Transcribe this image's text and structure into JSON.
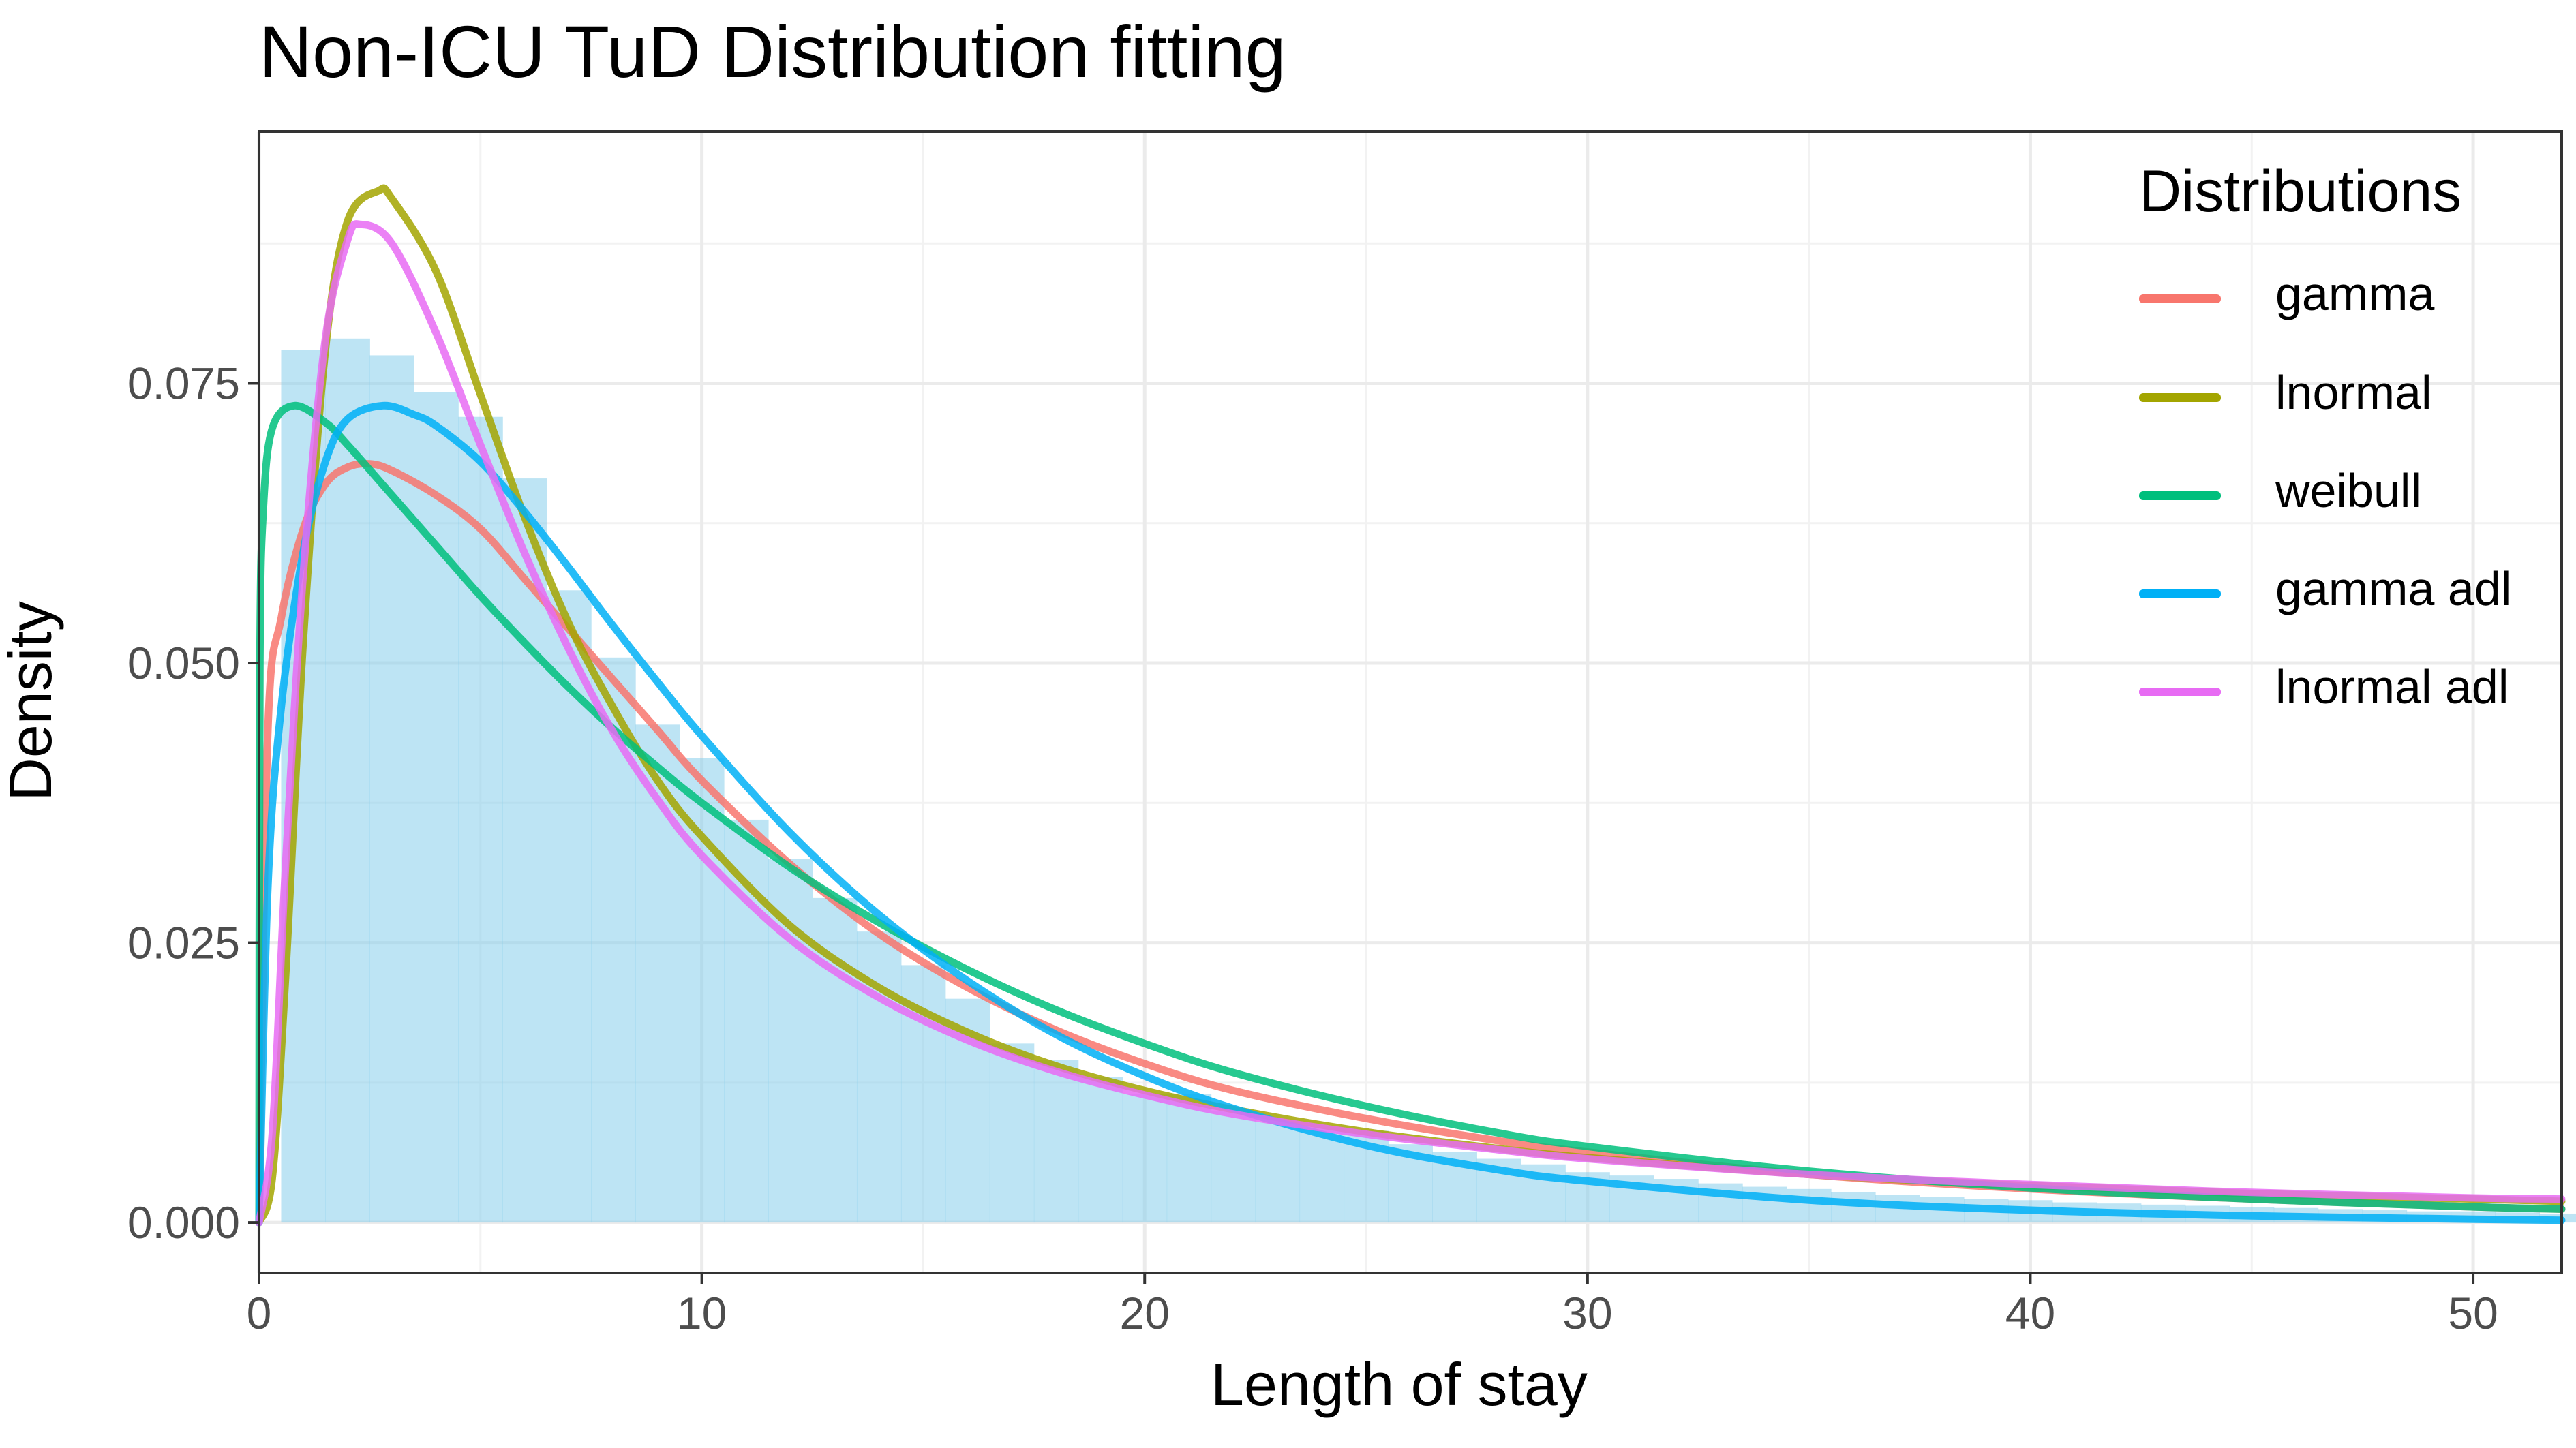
{
  "chart_data": {
    "type": "line",
    "title": "Non-ICU TuD Distribution fitting",
    "xlabel": "Length of stay",
    "ylabel": "Density",
    "xlim": [
      0,
      52
    ],
    "ylim": [
      -0.0045,
      0.0975
    ],
    "x_ticks": [
      0,
      10,
      20,
      30,
      40,
      50
    ],
    "x_tick_labels": [
      "0",
      "10",
      "20",
      "30",
      "40",
      "50"
    ],
    "y_ticks": [
      0.0,
      0.025,
      0.05,
      0.075
    ],
    "y_tick_labels": [
      "0.000",
      "0.025",
      "0.050",
      "0.075"
    ],
    "grid": true,
    "legend": {
      "title": "Distributions",
      "placement": "top-right"
    },
    "histogram": {
      "color": "#87CEEB",
      "bin_width": 1,
      "bins": [
        [
          0.5,
          0.078
        ],
        [
          1.5,
          0.079
        ],
        [
          2.5,
          0.0775
        ],
        [
          3.5,
          0.0742
        ],
        [
          4.5,
          0.072
        ],
        [
          5.5,
          0.0665
        ],
        [
          6.5,
          0.0565
        ],
        [
          7.5,
          0.0505
        ],
        [
          8.5,
          0.0445
        ],
        [
          9.5,
          0.0415
        ],
        [
          10.5,
          0.036
        ],
        [
          11.5,
          0.0325
        ],
        [
          12.5,
          0.029
        ],
        [
          13.5,
          0.026
        ],
        [
          14.5,
          0.023
        ],
        [
          15.5,
          0.02
        ],
        [
          16.5,
          0.016
        ],
        [
          17.5,
          0.0145
        ],
        [
          18.5,
          0.013
        ],
        [
          19.5,
          0.0115
        ],
        [
          20.5,
          0.0115
        ],
        [
          21.5,
          0.01
        ],
        [
          22.5,
          0.009
        ],
        [
          23.5,
          0.0085
        ],
        [
          24.5,
          0.0082
        ],
        [
          25.5,
          0.007
        ],
        [
          26.5,
          0.0063
        ],
        [
          27.5,
          0.0057
        ],
        [
          28.5,
          0.0052
        ],
        [
          29.5,
          0.0045
        ],
        [
          30.5,
          0.0042
        ],
        [
          31.5,
          0.0039
        ],
        [
          32.5,
          0.0035
        ],
        [
          33.5,
          0.0032
        ],
        [
          34.5,
          0.003
        ],
        [
          35.5,
          0.0027
        ],
        [
          36.5,
          0.0025
        ],
        [
          37.5,
          0.0023
        ],
        [
          38.5,
          0.0021
        ],
        [
          39.5,
          0.002
        ],
        [
          40.5,
          0.0018
        ],
        [
          41.5,
          0.0017
        ],
        [
          42.5,
          0.0016
        ],
        [
          43.5,
          0.0015
        ],
        [
          44.5,
          0.0014
        ],
        [
          45.5,
          0.0013
        ],
        [
          46.5,
          0.0012
        ],
        [
          47.5,
          0.0011
        ],
        [
          48.5,
          0.001
        ],
        [
          49.5,
          0.001
        ],
        [
          50.5,
          0.0009
        ],
        [
          51.5,
          0.0008
        ]
      ]
    },
    "series": [
      {
        "name": "gamma",
        "color": "#F8766D",
        "points": [
          [
            0,
            0
          ],
          [
            0.2,
            0.044
          ],
          [
            0.5,
            0.054
          ],
          [
            1,
            0.062
          ],
          [
            1.5,
            0.066
          ],
          [
            2,
            0.0675
          ],
          [
            2.5,
            0.0678
          ],
          [
            3,
            0.0672
          ],
          [
            4,
            0.065
          ],
          [
            5,
            0.062
          ],
          [
            6,
            0.0575
          ],
          [
            7,
            0.053
          ],
          [
            8,
            0.0485
          ],
          [
            9,
            0.044
          ],
          [
            10,
            0.0395
          ],
          [
            12,
            0.032
          ],
          [
            14,
            0.0258
          ],
          [
            16,
            0.021
          ],
          [
            18,
            0.0172
          ],
          [
            20,
            0.0142
          ],
          [
            22,
            0.0118
          ],
          [
            25,
            0.0093
          ],
          [
            28,
            0.0073
          ],
          [
            30,
            0.0063
          ],
          [
            35,
            0.0043
          ],
          [
            40,
            0.003
          ],
          [
            45,
            0.0021
          ],
          [
            50,
            0.0014
          ],
          [
            52,
            0.0012
          ]
        ]
      },
      {
        "name": "lnormal",
        "color": "#A3A500",
        "points": [
          [
            0,
            0
          ],
          [
            0.3,
            0.004
          ],
          [
            0.6,
            0.022
          ],
          [
            1,
            0.052
          ],
          [
            1.5,
            0.078
          ],
          [
            2,
            0.0895
          ],
          [
            2.7,
            0.0922
          ],
          [
            3,
            0.0915
          ],
          [
            4,
            0.085
          ],
          [
            5,
            0.074
          ],
          [
            6,
            0.063
          ],
          [
            7,
            0.0535
          ],
          [
            8,
            0.046
          ],
          [
            9,
            0.0395
          ],
          [
            10,
            0.0345
          ],
          [
            12,
            0.0265
          ],
          [
            14,
            0.021
          ],
          [
            16,
            0.017
          ],
          [
            18,
            0.014
          ],
          [
            20,
            0.0118
          ],
          [
            22,
            0.0101
          ],
          [
            25,
            0.0081
          ],
          [
            28,
            0.0066
          ],
          [
            30,
            0.0058
          ],
          [
            35,
            0.0043
          ],
          [
            40,
            0.0033
          ],
          [
            45,
            0.0026
          ],
          [
            50,
            0.0021
          ],
          [
            52,
            0.0019
          ]
        ]
      },
      {
        "name": "weibull",
        "color": "#00BF7D",
        "points": [
          [
            0,
            0
          ],
          [
            0.02,
            0.05
          ],
          [
            0.1,
            0.064
          ],
          [
            0.3,
            0.071
          ],
          [
            0.8,
            0.073
          ],
          [
            1.5,
            0.0715
          ],
          [
            2,
            0.0695
          ],
          [
            3,
            0.065
          ],
          [
            4,
            0.0605
          ],
          [
            5,
            0.056
          ],
          [
            6,
            0.0518
          ],
          [
            7,
            0.0478
          ],
          [
            8,
            0.0441
          ],
          [
            9,
            0.0407
          ],
          [
            10,
            0.0375
          ],
          [
            12,
            0.0317
          ],
          [
            14,
            0.0268
          ],
          [
            16,
            0.0226
          ],
          [
            18,
            0.019
          ],
          [
            20,
            0.016
          ],
          [
            22,
            0.0134
          ],
          [
            25,
            0.0104
          ],
          [
            28,
            0.008
          ],
          [
            30,
            0.0068
          ],
          [
            35,
            0.0046
          ],
          [
            40,
            0.0031
          ],
          [
            45,
            0.0021
          ],
          [
            50,
            0.0014
          ],
          [
            52,
            0.0012
          ]
        ]
      },
      {
        "name": "gamma adl",
        "color": "#00B0F6",
        "points": [
          [
            0,
            0
          ],
          [
            0.2,
            0.03
          ],
          [
            0.5,
            0.046
          ],
          [
            1,
            0.06
          ],
          [
            1.5,
            0.068
          ],
          [
            2,
            0.0718
          ],
          [
            2.8,
            0.073
          ],
          [
            3.5,
            0.0722
          ],
          [
            4,
            0.0712
          ],
          [
            5,
            0.068
          ],
          [
            6,
            0.0635
          ],
          [
            7,
            0.0585
          ],
          [
            8,
            0.0533
          ],
          [
            9,
            0.0483
          ],
          [
            10,
            0.0435
          ],
          [
            12,
            0.0348
          ],
          [
            14,
            0.0275
          ],
          [
            16,
            0.0216
          ],
          [
            18,
            0.0168
          ],
          [
            20,
            0.0131
          ],
          [
            22,
            0.0102
          ],
          [
            25,
            0.0069
          ],
          [
            28,
            0.0047
          ],
          [
            30,
            0.0037
          ],
          [
            35,
            0.002
          ],
          [
            40,
            0.0011
          ],
          [
            45,
            0.0006
          ],
          [
            50,
            0.0003
          ],
          [
            52,
            0.0002
          ]
        ]
      },
      {
        "name": "lnormal adl",
        "color": "#E76BF3",
        "points": [
          [
            0,
            0
          ],
          [
            0.3,
            0.008
          ],
          [
            0.6,
            0.032
          ],
          [
            1,
            0.058
          ],
          [
            1.5,
            0.079
          ],
          [
            2,
            0.0878
          ],
          [
            2.3,
            0.0892
          ],
          [
            3,
            0.0875
          ],
          [
            4,
            0.0795
          ],
          [
            5,
            0.0695
          ],
          [
            6,
            0.0598
          ],
          [
            7,
            0.0512
          ],
          [
            8,
            0.0438
          ],
          [
            9,
            0.0378
          ],
          [
            10,
            0.0328
          ],
          [
            12,
            0.0253
          ],
          [
            14,
            0.0201
          ],
          [
            16,
            0.0163
          ],
          [
            18,
            0.0135
          ],
          [
            20,
            0.0114
          ],
          [
            22,
            0.0097
          ],
          [
            25,
            0.0079
          ],
          [
            28,
            0.0065
          ],
          [
            30,
            0.0057
          ],
          [
            35,
            0.0043
          ],
          [
            40,
            0.0034
          ],
          [
            45,
            0.0027
          ],
          [
            50,
            0.0022
          ],
          [
            52,
            0.0021
          ]
        ]
      }
    ]
  }
}
